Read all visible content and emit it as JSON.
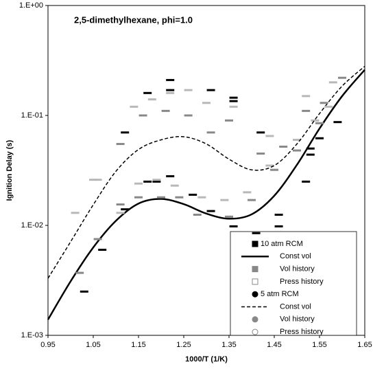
{
  "chart_data": {
    "type": "scatter",
    "title": "2,5-dimethylhexane, phi=1.0",
    "x_label": "1000/T (1/K)",
    "y_label": "Ignition Delay (s)",
    "xlim": [
      0.95,
      1.65
    ],
    "xticks": [
      0.95,
      1.05,
      1.15,
      1.25,
      1.35,
      1.45,
      1.55,
      1.65
    ],
    "ylim": [
      0.001,
      1
    ],
    "yticks": [
      {
        "value": 0.001,
        "label": "1.E-03"
      },
      {
        "value": 0.01,
        "label": "1.E-02"
      },
      {
        "value": 0.1,
        "label": "1.E-01"
      },
      {
        "value": 1,
        "label": "1.E+00"
      }
    ],
    "ylog": true,
    "grid": false,
    "legend": "lower right",
    "series": [
      {
        "name": "10 atm RCM",
        "type": "scatter",
        "marker": "square",
        "color": "#000000",
        "x": [
          1.03,
          1.07,
          1.12,
          1.17,
          1.19,
          1.22,
          1.27,
          1.31,
          1.36,
          1.41,
          1.46,
          1.46,
          1.52,
          1.53,
          1.55,
          1.59
        ],
        "values": [
          0.0025,
          0.006,
          0.014,
          0.025,
          0.025,
          0.028,
          0.019,
          0.0135,
          0.0098,
          0.0085,
          0.0125,
          0.0098,
          0.025,
          0.044,
          0.062,
          0.087
        ]
      },
      {
        "name": "Const vol",
        "type": "line",
        "dash": "solid",
        "color": "#000000",
        "x": [
          0.95,
          1.0,
          1.05,
          1.1,
          1.15,
          1.2,
          1.25,
          1.3,
          1.35,
          1.4,
          1.45,
          1.5,
          1.55,
          1.6,
          1.65
        ],
        "values": [
          0.00139,
          0.0031,
          0.0063,
          0.011,
          0.0158,
          0.0174,
          0.0156,
          0.0128,
          0.0115,
          0.0126,
          0.0186,
          0.0355,
          0.076,
          0.15,
          0.26
        ]
      },
      {
        "name": "Vol history",
        "type": "scatter",
        "marker": "square",
        "color": "#888888",
        "x": [
          1.02,
          1.06,
          1.11,
          1.15,
          1.2,
          1.24,
          1.28,
          1.35,
          1.4,
          1.45,
          1.5,
          1.55
        ],
        "values": [
          0.0037,
          0.0075,
          0.0155,
          0.018,
          0.018,
          0.018,
          0.0125,
          0.012,
          0.017,
          0.032,
          0.048,
          0.085
        ]
      },
      {
        "name": "Press history",
        "type": "scatter",
        "marker": "open-square",
        "color": "#b8b8b8",
        "x": [
          1.01,
          1.05,
          1.11,
          1.15,
          1.19,
          1.23,
          1.29,
          1.34,
          1.39,
          1.44,
          1.5,
          1.54
        ],
        "values": [
          0.013,
          0.026,
          0.013,
          0.024,
          0.026,
          0.023,
          0.018,
          0.017,
          0.02,
          0.035,
          0.06,
          0.09
        ]
      },
      {
        "name": "5 atm RCM",
        "type": "scatter",
        "marker": "circle",
        "color": "#000000",
        "x": [
          1.12,
          1.17,
          1.22,
          1.22,
          1.31,
          1.36,
          1.36,
          1.42,
          1.53
        ],
        "values": [
          0.07,
          0.16,
          0.21,
          0.17,
          0.17,
          0.145,
          0.135,
          0.07,
          0.05
        ]
      },
      {
        "name": "Const vol",
        "type": "line",
        "dash": "dashed",
        "color": "#000000",
        "x": [
          0.95,
          1.0,
          1.05,
          1.1,
          1.15,
          1.2,
          1.25,
          1.3,
          1.35,
          1.4,
          1.45,
          1.5,
          1.55,
          1.6,
          1.65
        ],
        "values": [
          0.0033,
          0.0071,
          0.0154,
          0.031,
          0.049,
          0.06,
          0.064,
          0.055,
          0.04,
          0.032,
          0.035,
          0.055,
          0.104,
          0.185,
          0.28
        ]
      },
      {
        "name": "Vol history",
        "type": "scatter",
        "marker": "circle",
        "color": "#888888",
        "x": [
          1.11,
          1.16,
          1.21,
          1.26,
          1.31,
          1.35,
          1.42,
          1.47,
          1.52,
          1.56,
          1.6
        ],
        "values": [
          0.055,
          0.1,
          0.11,
          0.1,
          0.07,
          0.09,
          0.045,
          0.052,
          0.11,
          0.13,
          0.22
        ]
      },
      {
        "name": "Press history",
        "type": "scatter",
        "marker": "open-circle",
        "color": "#b8b8b8",
        "x": [
          1.06,
          1.14,
          1.18,
          1.22,
          1.26,
          1.3,
          1.36,
          1.44,
          1.52,
          1.57,
          1.58
        ],
        "values": [
          0.026,
          0.12,
          0.14,
          0.16,
          0.17,
          0.13,
          0.12,
          0.065,
          0.15,
          0.12,
          0.2
        ]
      }
    ]
  }
}
